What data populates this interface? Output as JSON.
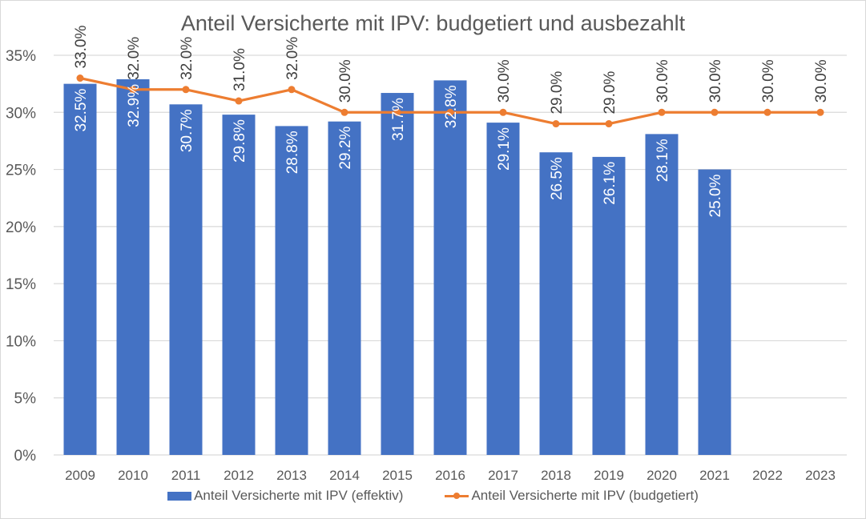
{
  "chart_data": {
    "type": "bar",
    "title": "Anteil Versicherte mit IPV: budgetiert und ausbezahlt",
    "xlabel": "",
    "ylabel": "",
    "categories": [
      "2009",
      "2010",
      "2011",
      "2012",
      "2013",
      "2014",
      "2015",
      "2016",
      "2017",
      "2018",
      "2019",
      "2020",
      "2021",
      "2022",
      "2023"
    ],
    "ylim": [
      0,
      35
    ],
    "yticks": [
      0,
      5,
      10,
      15,
      20,
      25,
      30,
      35
    ],
    "ytick_labels": [
      "0%",
      "5%",
      "10%",
      "15%",
      "20%",
      "25%",
      "30%",
      "35%"
    ],
    "grid": true,
    "legend_position": "bottom",
    "series": [
      {
        "name": "Anteil Versicherte mit IPV (effektiv)",
        "type": "bar",
        "color": "#4472C4",
        "values": [
          32.5,
          32.9,
          30.7,
          29.8,
          28.8,
          29.2,
          31.7,
          32.8,
          29.1,
          26.5,
          26.1,
          28.1,
          25.0,
          null,
          null
        ],
        "labels": [
          "32.5%",
          "32.9%",
          "30.7%",
          "29.8%",
          "28.8%",
          "29.2%",
          "31.7%",
          "32.8%",
          "29.1%",
          "26.5%",
          "26.1%",
          "28.1%",
          "25.0%",
          null,
          null
        ]
      },
      {
        "name": "Anteil Versicherte mit IPV (budgetiert)",
        "type": "line",
        "color": "#ED7D31",
        "values": [
          33.0,
          32.0,
          32.0,
          31.0,
          32.0,
          30.0,
          30.0,
          30.0,
          30.0,
          29.0,
          29.0,
          30.0,
          30.0,
          30.0,
          30.0
        ],
        "labels": [
          "33.0%",
          "32.0%",
          "32.0%",
          "31.0%",
          "32.0%",
          "30.0%",
          null,
          null,
          "30.0%",
          "29.0%",
          "29.0%",
          "30.0%",
          "30.0%",
          "30.0%",
          "30.0%"
        ]
      }
    ]
  }
}
